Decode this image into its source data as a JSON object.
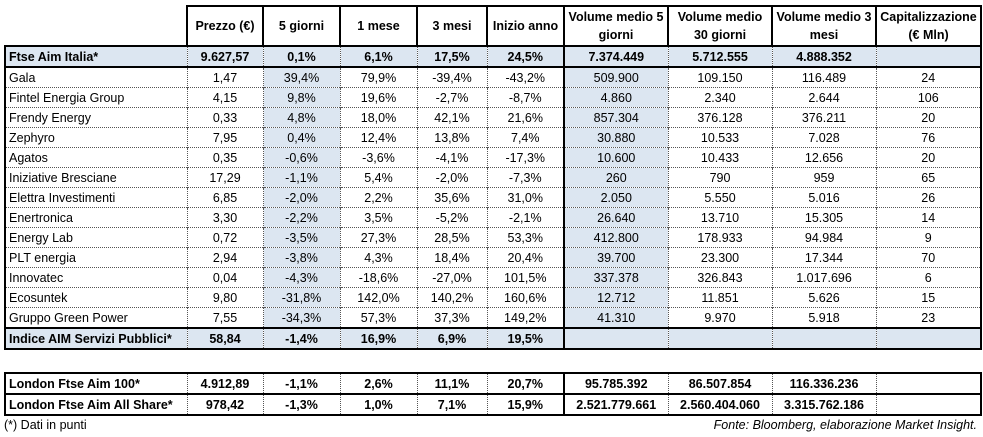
{
  "headers": [
    "",
    "Prezzo (€)",
    "5 giorni",
    "1 mese",
    "3 mesi",
    "Inizio anno",
    "Volume medio 5 giorni",
    "Volume medio 30 giorni",
    "Volume medio 3 mesi",
    "Capitalizzazione (€ Mln)"
  ],
  "index_row": [
    "Ftse Aim Italia*",
    "9.627,57",
    "0,1%",
    "6,1%",
    "17,5%",
    "24,5%",
    "7.374.449",
    "5.712.555",
    "4.888.352",
    ""
  ],
  "rows": [
    [
      "Gala",
      "1,47",
      "39,4%",
      "79,9%",
      "-39,4%",
      "-43,2%",
      "509.900",
      "109.150",
      "116.489",
      "24"
    ],
    [
      "Fintel Energia Group",
      "4,15",
      "9,8%",
      "19,6%",
      "-2,7%",
      "-8,7%",
      "4.860",
      "2.340",
      "2.644",
      "106"
    ],
    [
      "Frendy Energy",
      "0,33",
      "4,8%",
      "18,0%",
      "42,1%",
      "21,6%",
      "857.304",
      "376.128",
      "376.211",
      "20"
    ],
    [
      "Zephyro",
      "7,95",
      "0,4%",
      "12,4%",
      "13,8%",
      "7,4%",
      "30.880",
      "10.533",
      "7.028",
      "76"
    ],
    [
      "Agatos",
      "0,35",
      "-0,6%",
      "-3,6%",
      "-4,1%",
      "-17,3%",
      "10.600",
      "10.433",
      "12.656",
      "20"
    ],
    [
      "Iniziative Bresciane",
      "17,29",
      "-1,1%",
      "5,4%",
      "-2,0%",
      "-7,3%",
      "260",
      "790",
      "959",
      "65"
    ],
    [
      "Elettra Investimenti",
      "6,85",
      "-2,0%",
      "2,2%",
      "35,6%",
      "31,0%",
      "2.050",
      "5.550",
      "5.016",
      "26"
    ],
    [
      "Enertronica",
      "3,30",
      "-2,2%",
      "3,5%",
      "-5,2%",
      "-2,1%",
      "26.640",
      "13.710",
      "15.305",
      "14"
    ],
    [
      "Energy Lab",
      "0,72",
      "-3,5%",
      "27,3%",
      "28,5%",
      "53,3%",
      "412.800",
      "178.933",
      "94.984",
      "9"
    ],
    [
      "PLT energia",
      "2,94",
      "-3,8%",
      "4,3%",
      "18,4%",
      "20,4%",
      "39.700",
      "23.300",
      "17.344",
      "70"
    ],
    [
      "Innovatec",
      "0,04",
      "-4,3%",
      "-18,6%",
      "-27,0%",
      "101,5%",
      "337.378",
      "326.843",
      "1.017.696",
      "6"
    ],
    [
      "Ecosuntek",
      "9,80",
      "-31,8%",
      "142,0%",
      "140,2%",
      "160,6%",
      "12.712",
      "11.851",
      "5.626",
      "15"
    ],
    [
      "Gruppo Green Power",
      "7,55",
      "-34,3%",
      "57,3%",
      "37,3%",
      "149,2%",
      "41.310",
      "9.970",
      "5.918",
      "23"
    ]
  ],
  "sector_row": [
    "Indice AIM Servizi Pubblici*",
    "58,84",
    "-1,4%",
    "16,9%",
    "6,9%",
    "19,5%",
    "",
    "",
    "",
    ""
  ],
  "london_rows": [
    [
      "London Ftse Aim 100*",
      "4.912,89",
      "-1,1%",
      "2,6%",
      "11,1%",
      "20,7%",
      "95.785.392",
      "86.507.854",
      "116.336.236",
      ""
    ],
    [
      "London Ftse Aim All Share*",
      "978,42",
      "-1,3%",
      "1,0%",
      "7,1%",
      "15,9%",
      "2.521.779.661",
      "2.560.404.060",
      "3.315.762.186",
      ""
    ]
  ],
  "footnote_left": "(*) Dati in punti",
  "footnote_right": "Fonte: Bloomberg, elaborazione Market Insight."
}
